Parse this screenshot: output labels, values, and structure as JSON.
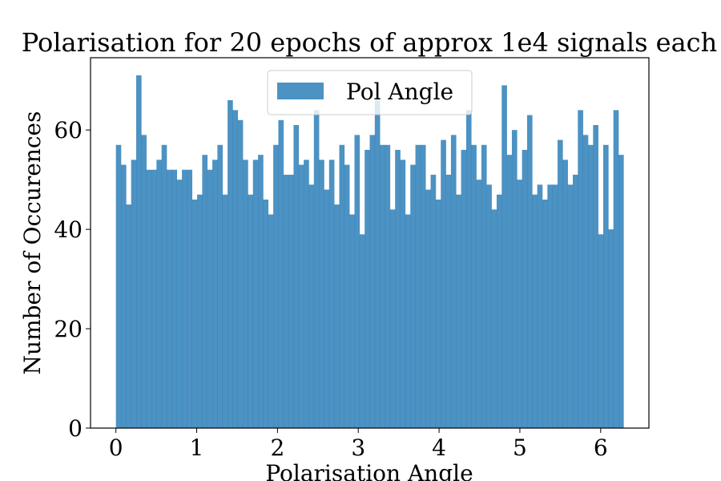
{
  "chart_data": {
    "type": "bar",
    "title": "Polarisation for 20 epochs of approx 1e4 signals each",
    "xlabel": "Polarisation Angle",
    "ylabel": "Number of Occurences",
    "xlim": [
      -0.314,
      6.597
    ],
    "ylim": [
      0,
      74.55
    ],
    "xticks": [
      0,
      1,
      2,
      3,
      4,
      5,
      6
    ],
    "yticks": [
      0,
      20,
      40,
      60
    ],
    "bin_start": 0,
    "bin_end": 6.2832,
    "grid": false,
    "legend_position": "top-center",
    "bar_color": "#1f77b4",
    "bar_opacity": 0.8,
    "series": [
      {
        "name": "Pol Angle",
        "values": [
          57,
          53,
          45,
          54,
          71,
          59,
          52,
          52,
          54,
          57,
          52,
          52,
          50,
          52,
          52,
          46,
          47,
          55,
          52,
          54,
          57,
          47,
          66,
          64,
          62,
          54,
          47,
          54,
          55,
          46,
          43,
          57,
          62,
          51,
          51,
          61,
          53,
          54,
          49,
          64,
          54,
          48,
          54,
          45,
          57,
          53,
          43,
          59,
          39,
          56,
          59,
          66,
          57,
          57,
          44,
          56,
          54,
          43,
          53,
          57,
          57,
          48,
          51,
          46,
          58,
          51,
          59,
          47,
          56,
          64,
          57,
          50,
          57,
          49,
          44,
          47,
          69,
          55,
          60,
          50,
          56,
          63,
          47,
          49,
          46,
          49,
          49,
          58,
          54,
          49,
          51,
          64,
          59,
          57,
          61,
          39,
          57,
          40,
          64,
          55
        ]
      }
    ]
  }
}
